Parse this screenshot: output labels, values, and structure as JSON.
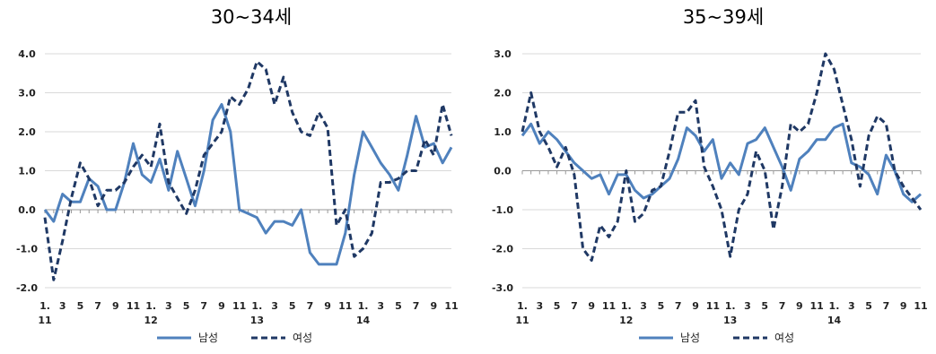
{
  "colors": {
    "male": "#4f81bd",
    "female": "#1f3864",
    "grid": "#d9d9d9",
    "axis": "#999999"
  },
  "chart_data": [
    {
      "type": "line",
      "title": "30~34세",
      "x": [
        "2011-01",
        "2011-02",
        "2011-03",
        "2011-04",
        "2011-05",
        "2011-06",
        "2011-07",
        "2011-08",
        "2011-09",
        "2011-10",
        "2011-11",
        "2011-12",
        "2012-01",
        "2012-02",
        "2012-03",
        "2012-04",
        "2012-05",
        "2012-06",
        "2012-07",
        "2012-08",
        "2012-09",
        "2012-10",
        "2012-11",
        "2012-12",
        "2013-01",
        "2013-02",
        "2013-03",
        "2013-04",
        "2013-05",
        "2013-06",
        "2013-07",
        "2013-08",
        "2013-09",
        "2013-10",
        "2013-11",
        "2013-12",
        "2014-01",
        "2014-02",
        "2014-03",
        "2014-04",
        "2014-05",
        "2014-06",
        "2014-07",
        "2014-08",
        "2014-09",
        "2014-10",
        "2014-11"
      ],
      "tick_labels": [
        {
          "line1": "1.",
          "line2": "11"
        },
        {
          "line1": "3",
          "line2": ""
        },
        {
          "line1": "5",
          "line2": ""
        },
        {
          "line1": "7",
          "line2": ""
        },
        {
          "line1": "9",
          "line2": ""
        },
        {
          "line1": "11",
          "line2": ""
        },
        {
          "line1": "1.",
          "line2": "12"
        },
        {
          "line1": "3",
          "line2": ""
        },
        {
          "line1": "5",
          "line2": ""
        },
        {
          "line1": "7",
          "line2": ""
        },
        {
          "line1": "9",
          "line2": ""
        },
        {
          "line1": "11",
          "line2": ""
        },
        {
          "line1": "1.",
          "line2": "13"
        },
        {
          "line1": "3",
          "line2": ""
        },
        {
          "line1": "5",
          "line2": ""
        },
        {
          "line1": "7",
          "line2": ""
        },
        {
          "line1": "9",
          "line2": ""
        },
        {
          "line1": "11",
          "line2": ""
        },
        {
          "line1": "1.",
          "line2": "14"
        },
        {
          "line1": "3",
          "line2": ""
        },
        {
          "line1": "5",
          "line2": ""
        },
        {
          "line1": "7",
          "line2": ""
        },
        {
          "line1": "9",
          "line2": ""
        },
        {
          "line1": "11",
          "line2": ""
        }
      ],
      "ylim": [
        -2.0,
        4.0
      ],
      "yticks": [
        "4.0",
        "3.0",
        "2.0",
        "1.0",
        "0.0",
        "-1.0",
        "-2.0"
      ],
      "grid": true,
      "legend": "bottom-center",
      "series": [
        {
          "name": "남성",
          "style": "solid",
          "values": [
            0.0,
            -0.3,
            0.4,
            0.2,
            0.2,
            0.8,
            0.6,
            0.0,
            0.0,
            0.7,
            1.7,
            0.9,
            0.7,
            1.3,
            0.5,
            1.5,
            0.8,
            0.1,
            1.0,
            2.3,
            2.7,
            2.0,
            0.0,
            -0.1,
            -0.2,
            -0.6,
            -0.3,
            -0.3,
            -0.4,
            0.0,
            -1.1,
            -1.4,
            -1.4,
            -1.4,
            -0.6,
            0.9,
            2.0,
            1.6,
            1.2,
            0.9,
            0.5,
            1.4,
            2.4,
            1.6,
            1.7,
            1.2,
            1.6
          ]
        },
        {
          "name": "여성",
          "style": "dashed",
          "values": [
            -0.2,
            -1.8,
            -0.8,
            0.3,
            1.2,
            0.8,
            0.1,
            0.5,
            0.5,
            0.7,
            1.1,
            1.4,
            1.1,
            2.2,
            0.7,
            0.3,
            -0.1,
            0.5,
            1.4,
            1.7,
            2.0,
            2.9,
            2.7,
            3.1,
            3.8,
            3.6,
            2.7,
            3.4,
            2.5,
            2.0,
            1.9,
            2.5,
            2.1,
            -0.4,
            0.0,
            -1.2,
            -1.0,
            -0.6,
            0.7,
            0.7,
            0.8,
            1.0,
            1.0,
            1.8,
            1.4,
            2.7,
            1.9
          ]
        }
      ]
    },
    {
      "type": "line",
      "title": "35~39세",
      "x": [
        "2011-01",
        "2011-02",
        "2011-03",
        "2011-04",
        "2011-05",
        "2011-06",
        "2011-07",
        "2011-08",
        "2011-09",
        "2011-10",
        "2011-11",
        "2011-12",
        "2012-01",
        "2012-02",
        "2012-03",
        "2012-04",
        "2012-05",
        "2012-06",
        "2012-07",
        "2012-08",
        "2012-09",
        "2012-10",
        "2012-11",
        "2012-12",
        "2013-01",
        "2013-02",
        "2013-03",
        "2013-04",
        "2013-05",
        "2013-06",
        "2013-07",
        "2013-08",
        "2013-09",
        "2013-10",
        "2013-11",
        "2013-12",
        "2014-01",
        "2014-02",
        "2014-03",
        "2014-04",
        "2014-05",
        "2014-06",
        "2014-07",
        "2014-08",
        "2014-09",
        "2014-10",
        "2014-11"
      ],
      "tick_labels": [
        {
          "line1": "1.",
          "line2": "11"
        },
        {
          "line1": "3",
          "line2": ""
        },
        {
          "line1": "5",
          "line2": ""
        },
        {
          "line1": "7",
          "line2": ""
        },
        {
          "line1": "9",
          "line2": ""
        },
        {
          "line1": "11",
          "line2": ""
        },
        {
          "line1": "1.",
          "line2": "12"
        },
        {
          "line1": "3",
          "line2": ""
        },
        {
          "line1": "5",
          "line2": ""
        },
        {
          "line1": "7",
          "line2": ""
        },
        {
          "line1": "9",
          "line2": ""
        },
        {
          "line1": "11",
          "line2": ""
        },
        {
          "line1": "1.",
          "line2": "13"
        },
        {
          "line1": "3",
          "line2": ""
        },
        {
          "line1": "5",
          "line2": ""
        },
        {
          "line1": "7",
          "line2": ""
        },
        {
          "line1": "9",
          "line2": ""
        },
        {
          "line1": "11",
          "line2": ""
        },
        {
          "line1": "1.",
          "line2": "14"
        },
        {
          "line1": "3",
          "line2": ""
        },
        {
          "line1": "5",
          "line2": ""
        },
        {
          "line1": "7",
          "line2": ""
        },
        {
          "line1": "9",
          "line2": ""
        },
        {
          "line1": "11",
          "line2": ""
        }
      ],
      "ylim": [
        -3.0,
        3.0
      ],
      "yticks": [
        "3.0",
        "2.0",
        "1.0",
        "0.0",
        "-1.0",
        "-2.0",
        "-3.0"
      ],
      "grid": true,
      "legend": "bottom-center",
      "series": [
        {
          "name": "남성",
          "style": "solid",
          "values": [
            0.9,
            1.2,
            0.7,
            1.0,
            0.8,
            0.5,
            0.2,
            0.0,
            -0.2,
            -0.1,
            -0.6,
            -0.1,
            -0.1,
            -0.5,
            -0.7,
            -0.6,
            -0.4,
            -0.2,
            0.3,
            1.1,
            0.9,
            0.5,
            0.8,
            -0.2,
            0.2,
            -0.1,
            0.7,
            0.8,
            1.1,
            0.6,
            0.1,
            -0.5,
            0.3,
            0.5,
            0.8,
            0.8,
            1.1,
            1.2,
            0.2,
            0.1,
            -0.1,
            -0.6,
            0.4,
            0.0,
            -0.6,
            -0.8,
            -0.6
          ]
        },
        {
          "name": "여성",
          "style": "dashed",
          "values": [
            1.0,
            2.0,
            1.0,
            0.6,
            0.1,
            0.6,
            -0.1,
            -2.0,
            -2.3,
            -1.4,
            -1.7,
            -1.3,
            0.0,
            -1.3,
            -1.1,
            -0.5,
            -0.4,
            0.5,
            1.5,
            1.5,
            1.8,
            0.1,
            -0.4,
            -1.0,
            -2.2,
            -1.0,
            -0.6,
            0.5,
            0.0,
            -1.5,
            -0.4,
            1.2,
            1.0,
            1.2,
            2.0,
            3.0,
            2.6,
            1.7,
            0.8,
            -0.4,
            0.9,
            1.4,
            1.2,
            0.0,
            -0.4,
            -0.7,
            -1.0
          ]
        }
      ]
    }
  ]
}
